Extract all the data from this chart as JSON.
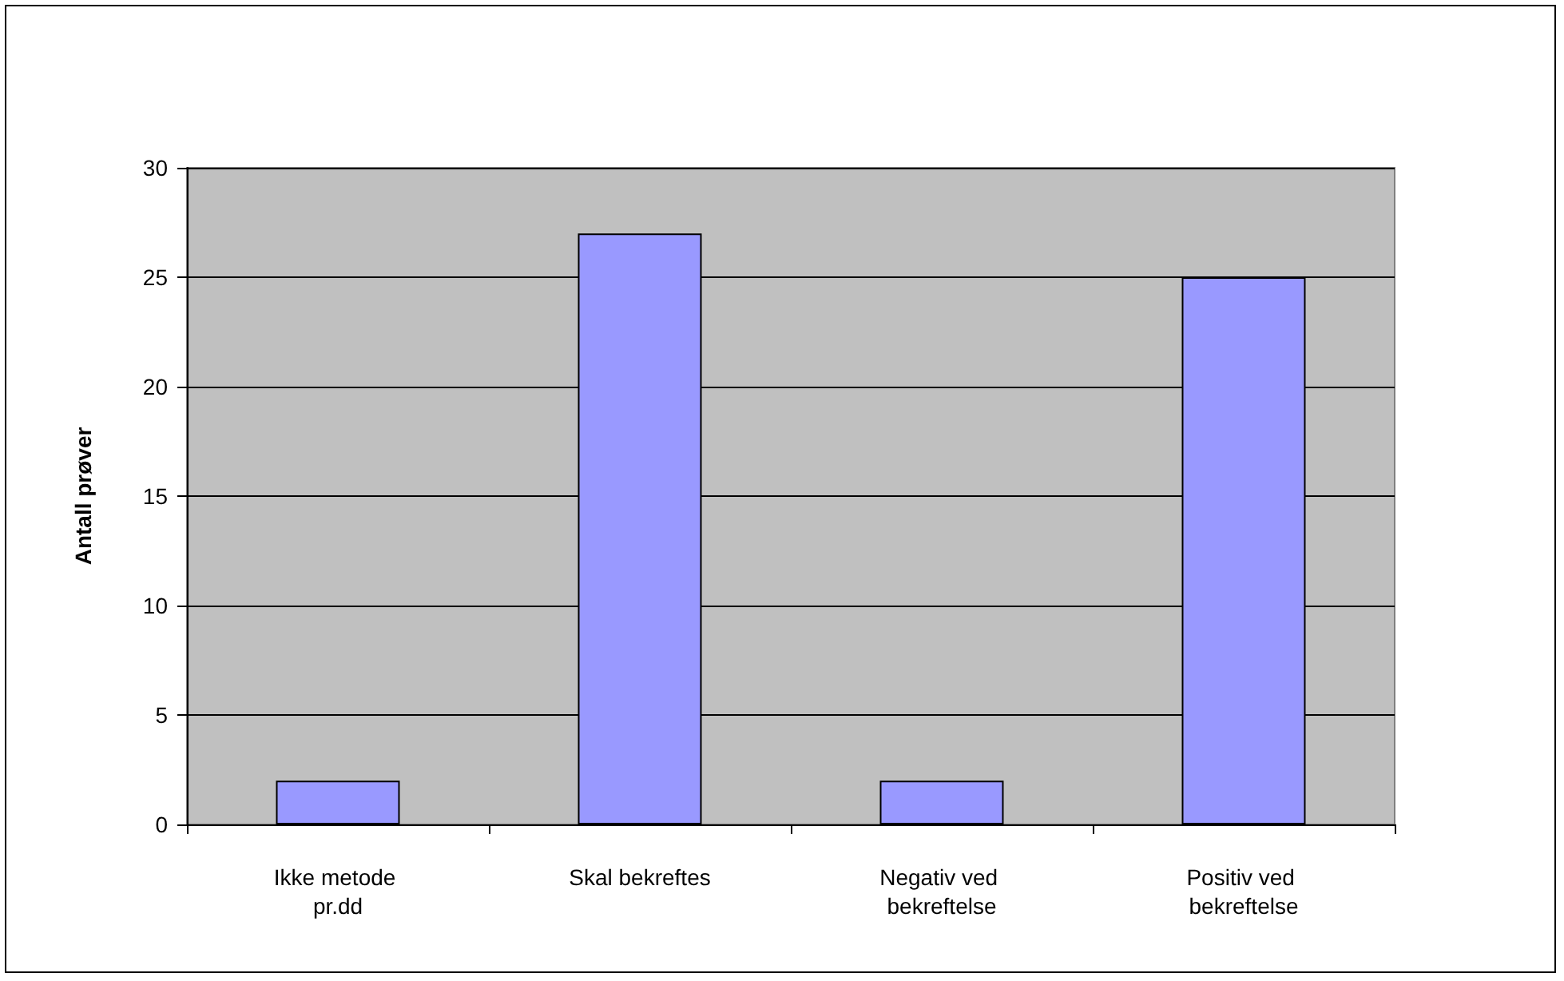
{
  "chart_data": {
    "type": "bar",
    "ylabel": "Antall prøver",
    "categories": [
      "Ikke metode pr.dd",
      "Skal bekreftes",
      "Negativ ved bekreftelse",
      "Positiv ved bekreftelse"
    ],
    "values": [
      2,
      27,
      2,
      25
    ],
    "color": "#9999ff",
    "ylim": [
      0,
      30
    ],
    "yticks": [
      0,
      5,
      10,
      15,
      20,
      25,
      30
    ],
    "grid": "y"
  }
}
